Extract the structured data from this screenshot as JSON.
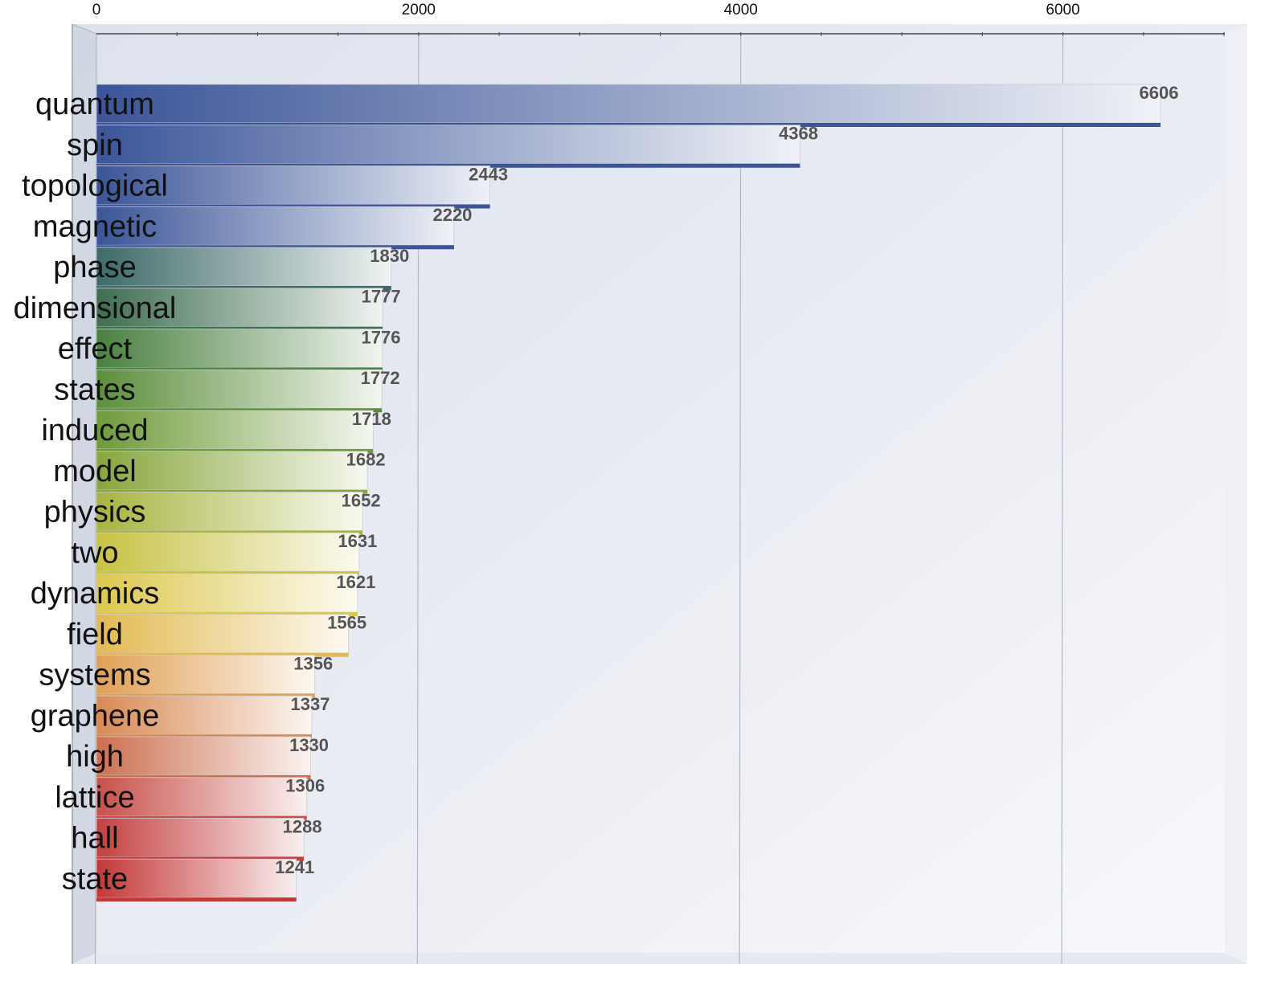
{
  "chart_data": {
    "type": "bar",
    "orientation": "horizontal",
    "categories": [
      "quantum",
      "spin",
      "topological",
      "magnetic",
      "phase",
      "dimensional",
      "effect",
      "states",
      "induced",
      "model",
      "physics",
      "two",
      "dynamics",
      "field",
      "systems",
      "graphene",
      "high",
      "lattice",
      "hall",
      "state"
    ],
    "values": [
      6606,
      4368,
      2443,
      2220,
      1830,
      1777,
      1776,
      1772,
      1718,
      1682,
      1652,
      1631,
      1621,
      1565,
      1356,
      1337,
      1330,
      1306,
      1288,
      1241
    ],
    "value_labels": [
      "6606",
      "4368",
      "2443",
      "2220",
      "1830",
      "1777",
      "1776",
      "1772",
      "1718",
      "1682",
      "1652",
      "1631",
      "1621",
      "1565",
      "1356",
      "1337",
      "1330",
      "1306",
      "1288",
      "1241"
    ],
    "colors": [
      "#3b5598",
      "#3b5598",
      "#3b5598",
      "#3b5598",
      "#3d6a68",
      "#3f6e50",
      "#4a8040",
      "#5c8e3c",
      "#6f9a3a",
      "#88a63c",
      "#a8b440",
      "#c8c244",
      "#dcc84e",
      "#e2ba52",
      "#e0a054",
      "#d88a54",
      "#cc7050",
      "#c8504a",
      "#c44040",
      "#c43838"
    ],
    "xaxis": {
      "position": "top",
      "range": [
        0,
        7000
      ],
      "ticks": [
        0,
        2000,
        4000,
        6000
      ],
      "tick_labels": [
        "0",
        "2000",
        "4000",
        "6000"
      ],
      "minor_step": 500
    },
    "grid": true,
    "legend": "none",
    "title": "",
    "xlabel": "",
    "ylabel": ""
  }
}
